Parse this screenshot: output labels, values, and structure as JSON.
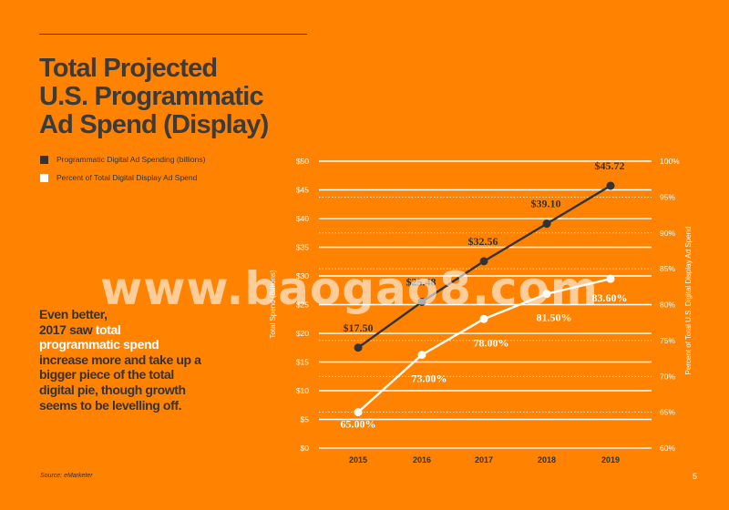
{
  "title_lines": [
    "Total Projected",
    "U.S. Programmatic",
    "Ad Spend (Display)"
  ],
  "legend": [
    {
      "label": "Programmatic Digital Ad Spending (billions)",
      "color": "#333333"
    },
    {
      "label": "Percent of Total Digital Display Ad Spend",
      "color": "#FFFFFF"
    }
  ],
  "callout": {
    "before": "Even better,\n2017 saw ",
    "highlight": "total programmatic spend",
    "after": " increase more and take up a bigger piece of the total digital pie, though growth seems to be levelling off."
  },
  "source": "Source: eMarketer",
  "page_number": "5",
  "watermark": "www.baogao8.com",
  "colors": {
    "background": "#FF8200",
    "spend_line": "#333333",
    "percent_line": "#FFFFFF"
  },
  "chart_data": {
    "type": "line",
    "categories": [
      "2015",
      "2016",
      "2017",
      "2018",
      "2019"
    ],
    "ylabel": "Total Spend (Billions)",
    "y2label": "Percent of Total U.S. Digital Display Ad Spend",
    "ylim": [
      0,
      50
    ],
    "y2lim": [
      60,
      100
    ],
    "y_ticks": [
      "$0",
      "$5",
      "$10",
      "$15",
      "$20",
      "$25",
      "$30",
      "$35",
      "$40",
      "$45",
      "$50"
    ],
    "y2_ticks": [
      "60%",
      "65%",
      "70%",
      "75%",
      "80%",
      "85%",
      "90%",
      "95%",
      "100%"
    ],
    "series": [
      {
        "name": "Programmatic Digital Ad Spending (billions)",
        "axis": "left",
        "color": "#333333",
        "values": [
          17.5,
          25.48,
          32.56,
          39.1,
          45.72
        ],
        "labels": [
          "$17.50",
          "$25.48",
          "$32.56",
          "$39.10",
          "$45.72"
        ]
      },
      {
        "name": "Percent of Total Digital Display Ad Spend",
        "axis": "right",
        "color": "#FFFFFF",
        "values": [
          65.0,
          73.0,
          78.0,
          81.5,
          83.6
        ],
        "labels": [
          "65.00%",
          "73.00%",
          "78.00%",
          "81.50%",
          "83.60%"
        ]
      }
    ]
  }
}
